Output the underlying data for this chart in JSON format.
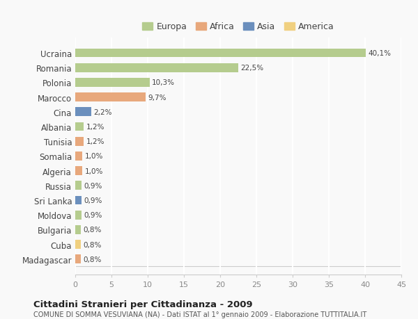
{
  "countries": [
    "Ucraina",
    "Romania",
    "Polonia",
    "Marocco",
    "Cina",
    "Albania",
    "Tunisia",
    "Somalia",
    "Algeria",
    "Russia",
    "Sri Lanka",
    "Moldova",
    "Bulgaria",
    "Cuba",
    "Madagascar"
  ],
  "values": [
    40.1,
    22.5,
    10.3,
    9.7,
    2.2,
    1.2,
    1.2,
    1.0,
    1.0,
    0.9,
    0.9,
    0.9,
    0.8,
    0.8,
    0.8
  ],
  "labels": [
    "40,1%",
    "22,5%",
    "10,3%",
    "9,7%",
    "2,2%",
    "1,2%",
    "1,2%",
    "1,0%",
    "1,0%",
    "0,9%",
    "0,9%",
    "0,9%",
    "0,8%",
    "0,8%",
    "0,8%"
  ],
  "continents": [
    "Europa",
    "Europa",
    "Europa",
    "Africa",
    "Asia",
    "Europa",
    "Africa",
    "Africa",
    "Africa",
    "Europa",
    "Asia",
    "Europa",
    "Europa",
    "America",
    "Africa"
  ],
  "colors": {
    "Europa": "#b5cc8e",
    "Africa": "#e8a87c",
    "Asia": "#6b8fbd",
    "America": "#f0d080"
  },
  "legend_order": [
    "Europa",
    "Africa",
    "Asia",
    "America"
  ],
  "title": "Cittadini Stranieri per Cittadinanza - 2009",
  "subtitle": "COMUNE DI SOMMA VESUVIANA (NA) - Dati ISTAT al 1° gennaio 2009 - Elaborazione TUTTITALIA.IT",
  "xlim": [
    0,
    45
  ],
  "xticks": [
    0,
    5,
    10,
    15,
    20,
    25,
    30,
    35,
    40,
    45
  ],
  "background_color": "#f9f9f9",
  "grid_color": "#ffffff",
  "bar_height": 0.6
}
